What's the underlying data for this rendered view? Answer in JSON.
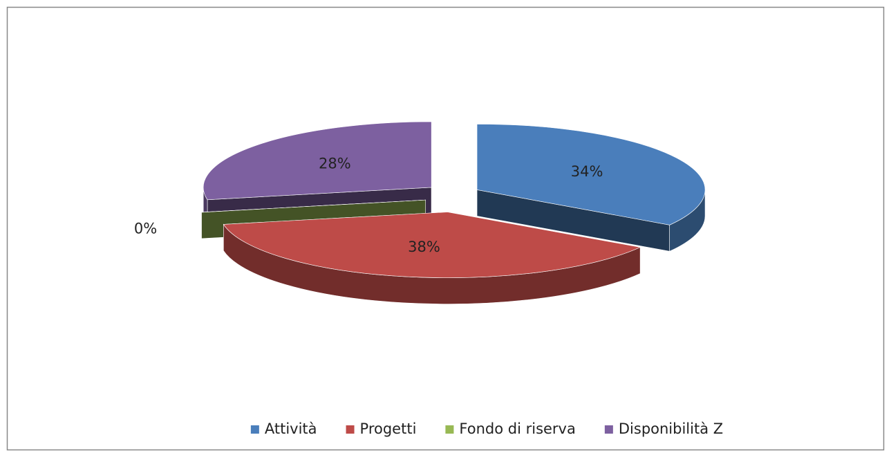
{
  "chart_data": {
    "type": "pie3d",
    "categories": [
      "Attività",
      "Progetti",
      "Fondo di riserva",
      "Disponibilità Z"
    ],
    "values": [
      34,
      38,
      0,
      28
    ],
    "value_labels": [
      "34%",
      "38%",
      "0%",
      "28%"
    ],
    "colors": [
      "#4a7ebb",
      "#be4b48",
      "#98b954",
      "#7d60a0"
    ],
    "legend": "bottom"
  }
}
